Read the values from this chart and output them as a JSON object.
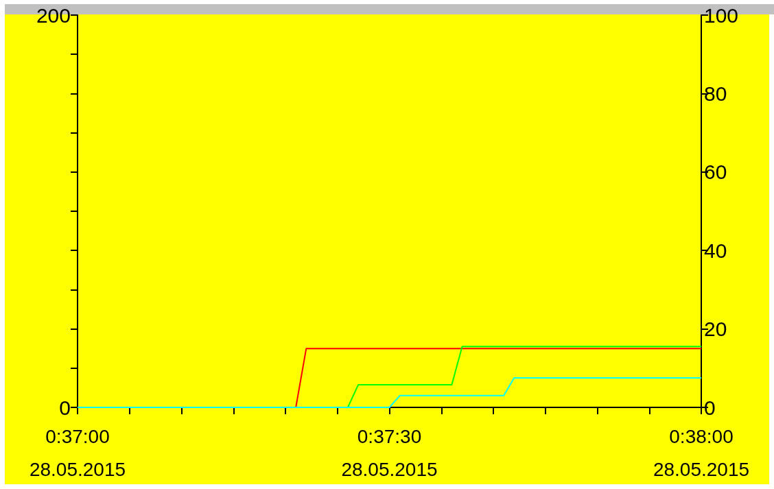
{
  "chart_data": {
    "type": "line",
    "series": [
      {
        "color": "#ff0000",
        "x": [
          "2015-05-28T00:37:00",
          "2015-05-28T00:37:21",
          "2015-05-28T00:37:22",
          "2015-05-28T00:38:00"
        ],
        "values": [
          0,
          0,
          30,
          30
        ]
      },
      {
        "color": "#00ff00",
        "x": [
          "2015-05-28T00:37:00",
          "2015-05-28T00:37:26",
          "2015-05-28T00:37:27",
          "2015-05-28T00:37:36",
          "2015-05-28T00:37:37",
          "2015-05-28T00:38:00"
        ],
        "values": [
          0,
          0,
          11.5,
          11.5,
          31,
          31
        ]
      },
      {
        "color": "#00ffff",
        "x": [
          "2015-05-28T00:37:00",
          "2015-05-28T00:37:30",
          "2015-05-28T00:37:31",
          "2015-05-28T00:37:41",
          "2015-05-28T00:37:42",
          "2015-05-28T00:38:00"
        ],
        "values": [
          0,
          0,
          6,
          6,
          15,
          15
        ]
      }
    ],
    "xlim": [
      "2015-05-28T00:37:00",
      "2015-05-28T00:38:00"
    ],
    "xticks": [
      {
        "value": "2015-05-28T00:37:00",
        "label": "0:37:00\n28.05.2015"
      },
      {
        "value": "2015-05-28T00:37:05",
        "label": null
      },
      {
        "value": "2015-05-28T00:37:10",
        "label": null
      },
      {
        "value": "2015-05-28T00:37:15",
        "label": null
      },
      {
        "value": "2015-05-28T00:37:20",
        "label": null
      },
      {
        "value": "2015-05-28T00:37:25",
        "label": null
      },
      {
        "value": "2015-05-28T00:37:30",
        "label": "0:37:30\n28.05.2015"
      },
      {
        "value": "2015-05-28T00:37:35",
        "label": null
      },
      {
        "value": "2015-05-28T00:37:40",
        "label": null
      },
      {
        "value": "2015-05-28T00:37:45",
        "label": null
      },
      {
        "value": "2015-05-28T00:37:50",
        "label": null
      },
      {
        "value": "2015-05-28T00:37:55",
        "label": null
      },
      {
        "value": "2015-05-28T00:38:00",
        "label": "0:38:00\n28.05.2015"
      }
    ],
    "ylim": [
      0,
      200
    ],
    "yticks": [
      0,
      {
        "value": 20,
        "label": null
      },
      {
        "value": 40,
        "label": null
      },
      {
        "value": 60,
        "label": null
      },
      {
        "value": 80,
        "label": null
      },
      {
        "value": 100,
        "label": null
      },
      {
        "value": 120,
        "label": null
      },
      {
        "value": 140,
        "label": null
      },
      {
        "value": 160,
        "label": null
      },
      {
        "value": 180,
        "label": null
      },
      200
    ],
    "y2lim": [
      0,
      100
    ],
    "y2ticks": [
      0,
      20,
      40,
      60,
      80,
      100
    ],
    "marker": "none"
  }
}
